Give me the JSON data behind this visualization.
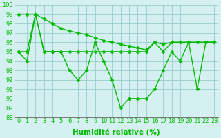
{
  "x": [
    0,
    1,
    2,
    3,
    4,
    5,
    6,
    7,
    8,
    9,
    10,
    11,
    12,
    13,
    14,
    15,
    16,
    17,
    18,
    19,
    20,
    21,
    22,
    23
  ],
  "line1": [
    95,
    94,
    99,
    95,
    95,
    95,
    93,
    92,
    93,
    96,
    94,
    92,
    89,
    90,
    90,
    90,
    91,
    93,
    95,
    94,
    96,
    91,
    96,
    96
  ],
  "line2": [
    95,
    95,
    99,
    95,
    95,
    95,
    95,
    95,
    95,
    95,
    95,
    95,
    95,
    95,
    95,
    95,
    96,
    95,
    96,
    96,
    96,
    96,
    96,
    96
  ],
  "line3": [
    99,
    99,
    99,
    98.5,
    98,
    97.5,
    97.2,
    97,
    96.8,
    96.5,
    96.2,
    96,
    95.8,
    95.6,
    95.4,
    95.2,
    96,
    95.8,
    96,
    96,
    96,
    96,
    96,
    96
  ],
  "line_color": "#00bb00",
  "bg_color": "#d5f0f0",
  "grid_color": "#99cccc",
  "xlabel": "Humidité relative (%)",
  "ylim": [
    88,
    100
  ],
  "xlim": [
    -0.5,
    23.5
  ],
  "yticks": [
    88,
    89,
    90,
    91,
    92,
    93,
    94,
    95,
    96,
    97,
    98,
    99,
    100
  ],
  "xticks": [
    0,
    1,
    2,
    3,
    4,
    5,
    6,
    7,
    8,
    9,
    10,
    11,
    12,
    13,
    14,
    15,
    16,
    17,
    18,
    19,
    20,
    21,
    22,
    23
  ],
  "marker": "D",
  "marker_size": 2.5,
  "linewidth": 1.0,
  "xlabel_fontsize": 7.5,
  "tick_fontsize": 6
}
